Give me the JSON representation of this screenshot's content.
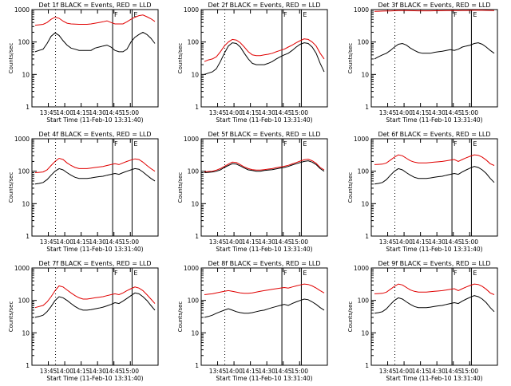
{
  "chart_data": {
    "type": "line",
    "yscale": "log",
    "ylim": [
      1,
      1000
    ],
    "ylabel": "Counts/sec",
    "xlabel": "Start Time (11-Feb-10 13:31:40)",
    "x_ticks": [
      "13:45",
      "14:00",
      "14:15",
      "14:30",
      "14:45",
      "15:00"
    ],
    "y_ticks": [
      "1",
      "10",
      "100",
      "1000"
    ],
    "colors": {
      "events": "#000000",
      "lld": "#e00000"
    },
    "marker_labels": {
      "F": "F",
      "E": "E"
    },
    "panels": [
      {
        "title": "Det 1f BLACK = Events, RED = LLD",
        "black": [
          50,
          55,
          60,
          90,
          150,
          190,
          160,
          110,
          80,
          65,
          60,
          55,
          55,
          55,
          55,
          65,
          70,
          75,
          80,
          70,
          55,
          50,
          50,
          60,
          100,
          140,
          170,
          200,
          170,
          130,
          90
        ],
        "red": [
          330,
          340,
          350,
          400,
          500,
          580,
          540,
          440,
          380,
          360,
          355,
          350,
          350,
          350,
          360,
          380,
          400,
          420,
          450,
          400,
          360,
          360,
          360,
          420,
          500,
          580,
          650,
          680,
          600,
          520,
          430
        ]
      },
      {
        "title": "Det 2f BLACK = Events, RED = LLD",
        "black": [
          10,
          11,
          12,
          15,
          25,
          45,
          75,
          95,
          90,
          70,
          45,
          30,
          22,
          20,
          20,
          20,
          22,
          25,
          30,
          35,
          40,
          45,
          55,
          70,
          85,
          95,
          90,
          70,
          45,
          22,
          12
        ],
        "red": [
          25,
          28,
          30,
          35,
          50,
          75,
          100,
          120,
          115,
          95,
          70,
          50,
          40,
          38,
          38,
          40,
          42,
          45,
          50,
          55,
          60,
          70,
          80,
          95,
          110,
          125,
          120,
          100,
          75,
          45,
          30
        ]
      },
      {
        "title": "Det 3f BLACK = Events, RED = LLD",
        "black": [
          30,
          35,
          40,
          45,
          55,
          70,
          85,
          90,
          80,
          65,
          55,
          48,
          45,
          45,
          45,
          48,
          50,
          52,
          55,
          58,
          55,
          60,
          70,
          75,
          80,
          90,
          95,
          85,
          70,
          55,
          45
        ],
        "red": [
          880,
          890,
          900,
          905,
          910,
          920,
          930,
          935,
          930,
          925,
          920,
          915,
          915,
          915,
          915,
          920,
          920,
          925,
          930,
          935,
          930,
          935,
          940,
          940,
          945,
          950,
          955,
          950,
          945,
          940,
          935
        ]
      },
      {
        "title": "Det 4f BLACK = Events, RED = LLD",
        "black": [
          40,
          42,
          45,
          55,
          75,
          100,
          120,
          110,
          90,
          75,
          65,
          60,
          60,
          60,
          62,
          65,
          68,
          70,
          75,
          80,
          85,
          80,
          90,
          100,
          110,
          120,
          115,
          95,
          75,
          60,
          50
        ],
        "red": [
          90,
          92,
          95,
          110,
          150,
          200,
          250,
          230,
          180,
          150,
          130,
          120,
          120,
          120,
          125,
          130,
          135,
          140,
          150,
          160,
          170,
          160,
          180,
          200,
          220,
          240,
          230,
          190,
          150,
          120,
          100
        ]
      },
      {
        "title": "Det 5f BLACK = Events, RED = LLD",
        "black": [
          90,
          92,
          95,
          100,
          110,
          130,
          150,
          170,
          165,
          145,
          125,
          110,
          105,
          100,
          100,
          105,
          108,
          112,
          118,
          125,
          130,
          140,
          155,
          170,
          185,
          200,
          210,
          190,
          160,
          120,
          100
        ],
        "red": [
          95,
          98,
          100,
          108,
          120,
          140,
          165,
          190,
          185,
          160,
          135,
          120,
          112,
          108,
          108,
          112,
          116,
          120,
          128,
          135,
          142,
          152,
          168,
          185,
          205,
          225,
          235,
          210,
          175,
          130,
          110
        ]
      },
      {
        "title": "Det 6f BLACK = Events, RED = LLD",
        "black": [
          40,
          42,
          45,
          55,
          75,
          100,
          120,
          110,
          90,
          75,
          65,
          60,
          60,
          60,
          62,
          65,
          68,
          70,
          75,
          80,
          85,
          80,
          95,
          110,
          125,
          140,
          130,
          110,
          85,
          60,
          45
        ],
        "red": [
          160,
          162,
          165,
          180,
          220,
          270,
          320,
          300,
          250,
          210,
          190,
          180,
          180,
          180,
          185,
          190,
          195,
          200,
          210,
          220,
          230,
          200,
          230,
          260,
          290,
          320,
          310,
          270,
          220,
          170,
          150
        ]
      },
      {
        "title": "Det 7f BLACK = Events, RED = LLD",
        "black": [
          30,
          32,
          35,
          45,
          65,
          100,
          130,
          120,
          100,
          80,
          65,
          55,
          50,
          50,
          52,
          55,
          58,
          62,
          68,
          75,
          85,
          80,
          95,
          115,
          140,
          170,
          160,
          130,
          100,
          70,
          50
        ],
        "red": [
          60,
          65,
          70,
          90,
          130,
          200,
          280,
          260,
          210,
          170,
          140,
          120,
          110,
          110,
          115,
          120,
          125,
          130,
          140,
          150,
          160,
          150,
          170,
          200,
          230,
          260,
          240,
          200,
          150,
          110,
          80
        ]
      },
      {
        "title": "Det 8f BLACK = Events, RED = LLD",
        "black": [
          30,
          32,
          35,
          40,
          45,
          50,
          55,
          50,
          45,
          42,
          40,
          40,
          42,
          45,
          48,
          50,
          55,
          60,
          65,
          70,
          75,
          70,
          80,
          90,
          100,
          110,
          105,
          90,
          75,
          60,
          50
        ],
        "red": [
          150,
          155,
          160,
          170,
          180,
          190,
          200,
          190,
          180,
          170,
          165,
          165,
          170,
          180,
          190,
          200,
          210,
          220,
          230,
          240,
          250,
          240,
          260,
          280,
          300,
          320,
          310,
          280,
          240,
          200,
          170
        ]
      },
      {
        "title": "Det 9f BLACK = Events, RED = LLD",
        "black": [
          40,
          42,
          45,
          55,
          75,
          100,
          120,
          110,
          90,
          75,
          65,
          60,
          60,
          60,
          62,
          65,
          68,
          70,
          75,
          80,
          85,
          80,
          95,
          110,
          125,
          140,
          130,
          110,
          85,
          60,
          45
        ],
        "red": [
          160,
          162,
          165,
          180,
          220,
          270,
          320,
          300,
          250,
          210,
          190,
          180,
          180,
          180,
          185,
          190,
          195,
          200,
          210,
          220,
          230,
          200,
          230,
          260,
          290,
          320,
          310,
          270,
          220,
          170,
          150
        ]
      }
    ]
  }
}
